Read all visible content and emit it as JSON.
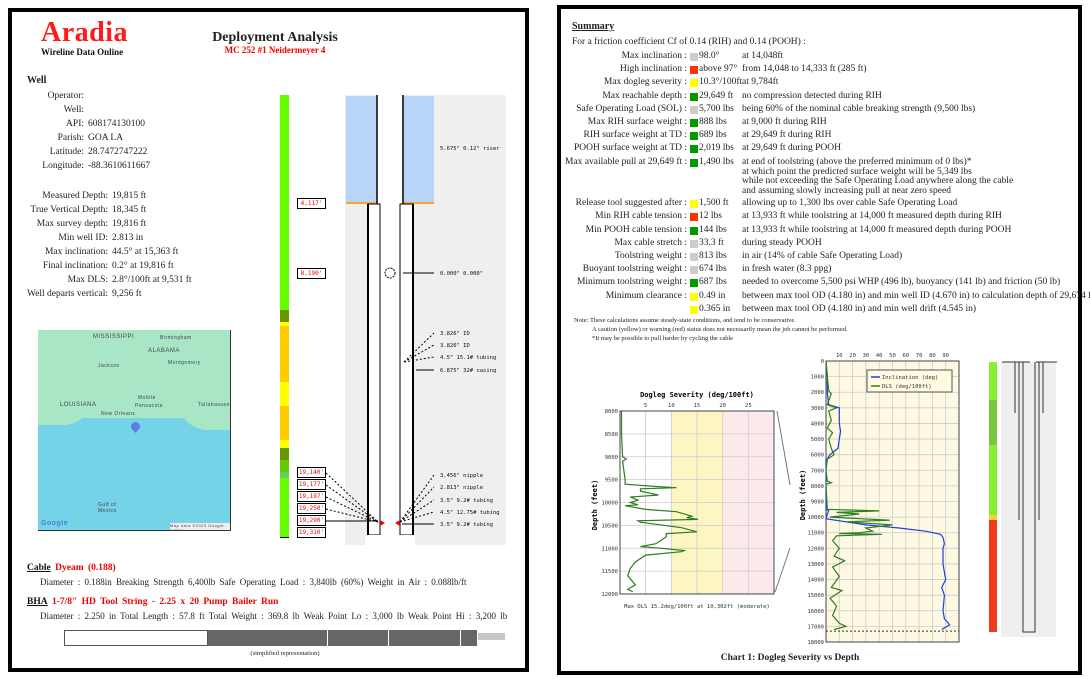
{
  "left": {
    "brand": "Aradia",
    "brand_sub": "Wireline Data Online",
    "title": "Deployment Analysis",
    "subtitle": "MC 252 #1 Neidermeyer 4",
    "well_heading": "Well",
    "well": [
      {
        "label": "Operator:",
        "value": ""
      },
      {
        "label": "Well:",
        "value": ""
      },
      {
        "label": "API:",
        "value": "608174130100"
      },
      {
        "label": "Parish:",
        "value": "GOA LA"
      },
      {
        "label": "Latitude:",
        "value": "28.7472747222"
      },
      {
        "label": "Longitude:",
        "value": "-88.3610611667"
      }
    ],
    "stats": [
      {
        "label": "Measured Depth:",
        "value": "19,815 ft"
      },
      {
        "label": "True Vertical Depth:",
        "value": "18,345 ft"
      },
      {
        "label": "Max survey depth:",
        "value": "19,816 ft"
      },
      {
        "label": "Min well ID:",
        "value": "2.813 in"
      },
      {
        "label": "Max inclination:",
        "value": "44.5° at 15,363 ft"
      },
      {
        "label": "Final inclination:",
        "value": "0.2° at 19,816 ft"
      },
      {
        "label": "Max DLS:",
        "value": "2.8°/100ft at 9,531 ft"
      },
      {
        "label": "Well departs vertical:",
        "value": "9,256 ft"
      }
    ],
    "map": {
      "labels": [
        "MISSISSIPPI",
        "ALABAMA",
        "LOUISIANA",
        "Montgomery",
        "Jackson",
        "Mobile",
        "Pensacola",
        "New Orleans",
        "Gulf of Mexico",
        "Tallahassee",
        "Birmingham"
      ],
      "logo": "Google",
      "attribution": "Map data ©2025 Google INEGI",
      "pin_color": "#5b7fe6"
    },
    "wellbore": {
      "left_depths": [
        "4,117'",
        "8,190'",
        "19,140'",
        "19,177'",
        "19,197'",
        "19,250'",
        "19,290'",
        "19,310'"
      ],
      "right_labels": [
        "5.675\" 0.12\" riser",
        "0.000\" 0.000\"",
        "3.826\" ID",
        "3.826\" ID",
        "4.5\" 15.1# tubing",
        "6.875\" 32# casing",
        "3.456\" nipple",
        "2.813\" nipple",
        "3.5\" 9.2# tubing",
        "4.5\" 12.75# tubing",
        "3.5\" 9.2# tubing"
      ],
      "riser_color": "#b8d4f8",
      "mudline_color": "#f5a623"
    },
    "cable": {
      "heading": "Cable",
      "name": "Dyeam (0.188)",
      "details": "Diameter : 0.188in    Breaking Strength 6,400lb    Safe Operating Load : 3,840lb (60%)    Weight in Air : 0.088lb/ft"
    },
    "bha": {
      "heading": "BHA",
      "name": "1-7/8\" HD Tool String - 2.25 x 20 Pump Bailer Run",
      "details": "Diameter : 2.250 in    Total Length : 57.8 ft    Total Weight : 369.8 lb    Weak Point Lo : 3,000 lb    Weak Point Hi : 3,200 lb"
    },
    "toolstring_note": "(simplified representation)"
  },
  "right": {
    "summary_title": "Summary",
    "friction_line": "For a friction coefficient Cf of 0.14 (RIH) and 0.14 (POOH) :",
    "rows": [
      {
        "label": "Max inclination :",
        "color": "#cccccc",
        "value": "98.0°",
        "desc": [
          "at 14,048ft"
        ]
      },
      {
        "label": "High inclination :",
        "color": "#ff3300",
        "value": "above 97°",
        "desc": [
          "from 14,048 to 14,333 ft (285 ft)"
        ]
      },
      {
        "label": "Max dogleg severity :",
        "color": "#ffff00",
        "value": "10.3°/100ft",
        "desc": [
          "at 9,784ft"
        ]
      },
      {
        "label": "Max reachable depth :",
        "color": "#009900",
        "value": "29,649 ft",
        "desc": [
          "no compression detected during RIH"
        ]
      },
      {
        "label": "Safe Operating Load (SOL) :",
        "color": "#cccccc",
        "value": "5,700 lbs",
        "desc": [
          "being 60% of the nominal cable breaking strength (9,500 lbs)"
        ]
      },
      {
        "label": "Max RIH surface weight :",
        "color": "#009900",
        "value": "888 lbs",
        "desc": [
          "at 9,000 ft during RIH"
        ]
      },
      {
        "label": "RIH surface weight at TD :",
        "color": "#009900",
        "value": "689 lbs",
        "desc": [
          "at 29,649 ft during RIH"
        ]
      },
      {
        "label": "POOH surface weight at TD :",
        "color": "#009900",
        "value": "2,019 lbs",
        "desc": [
          "at 29,649 ft during POOH"
        ]
      },
      {
        "label": "Max available pull at 29,649 ft :",
        "color": "#009900",
        "value": "1,490 lbs",
        "desc": [
          "at end of toolstring (above the preferred minimum of 0 lbs)*",
          "at which point the predicted surface weight will be 5,349 lbs",
          "while not exceeding the Safe Operating Load anywhere along the cable",
          "and assuming slowly increasing pull at near zero speed"
        ]
      },
      {
        "label": "Release tool suggested after :",
        "color": "#ffff00",
        "value": "1,500 ft",
        "desc": [
          "allowing up to 1,300 lbs over cable Safe Operating Load"
        ]
      },
      {
        "label": "Min RIH cable tension :",
        "color": "#ff3300",
        "value": "12 lbs",
        "desc": [
          "at 13,933 ft while toolstring at 14,000 ft measured depth during RIH"
        ]
      },
      {
        "label": "Min POOH cable tension :",
        "color": "#009900",
        "value": "144 lbs",
        "desc": [
          "at 13,933 ft while toolstring at 14,000 ft measured depth during POOH"
        ]
      },
      {
        "label": "Max cable stretch :",
        "color": "#cccccc",
        "value": "33.3 ft",
        "desc": [
          "during steady POOH"
        ]
      },
      {
        "label": "Toolstring weight :",
        "color": "#cccccc",
        "value": "813 lbs",
        "desc": [
          "in air   (14% of cable Safe Operating Load)"
        ]
      },
      {
        "label": "Buoyant toolstring weight :",
        "color": "#cccccc",
        "value": "674 lbs",
        "desc": [
          "in fresh water (8.3 ppg)"
        ]
      },
      {
        "label": "Minimum toolstring weight :",
        "color": "#009900",
        "value": "687 lbs",
        "desc": [
          "needed to overcome 5,500 psi WHP (496 lb), buoyancy (141 lb) and friction (50 lb)"
        ]
      },
      {
        "label": "Minimum clearance :",
        "color": "#ffff00",
        "value": "0.49 in",
        "desc": [
          "between max tool OD (4.180 in) and min well ID (4.670 in) to calculation depth of 29,674 ft"
        ]
      },
      {
        "label": "",
        "color": "#ffff00",
        "value": "0.365 in",
        "desc": [
          "between max tool OD (4.180 in) and min well drift (4.545 in)"
        ]
      }
    ],
    "notes": [
      "Note:   These calculations assume steady-state conditions, and tend to be conservative.",
      "A caution (yellow) or warning (red) status does not necessarily mean the job cannot be performed.",
      "*It may be possible to pull harder by cycling the cable"
    ],
    "caption": "Chart 1: Dogleg Severity vs Depth"
  },
  "chart_data": [
    {
      "type": "line",
      "title": "Dogleg Severity (deg/100ft)",
      "ylabel": "Depth (feet)",
      "xlim": [
        0,
        30
      ],
      "ylim": [
        8000,
        12000
      ],
      "y_inverted": true,
      "x_ticks": [
        "5",
        "10",
        "15",
        "20",
        "25"
      ],
      "y_ticks": [
        "8000",
        "8500",
        "9000",
        "9500",
        "10000",
        "10500",
        "11000",
        "11500",
        "12000"
      ],
      "grid": true,
      "bands": [
        {
          "from": 10,
          "to": 20,
          "color": "#fdf6c3"
        },
        {
          "from": 20,
          "to": 30,
          "color": "#fde8ea"
        }
      ],
      "footer": "Max DLS 15.2deg/100ft at 10,302ft (moderate)",
      "series": [
        {
          "color": "#2e7d1e",
          "points": [
            [
              8000,
              0.3
            ],
            [
              8500,
              0.3
            ],
            [
              9000,
              0.5
            ],
            [
              9050,
              1.2
            ],
            [
              9100,
              0.5
            ],
            [
              9500,
              1
            ],
            [
              9600,
              1
            ],
            [
              9650,
              7
            ],
            [
              9676,
              11
            ],
            [
              9700,
              4
            ],
            [
              9750,
              4
            ],
            [
              9800,
              6
            ],
            [
              9836,
              7.5
            ],
            [
              9880,
              2
            ],
            [
              9950,
              3.5
            ],
            [
              10000,
              2
            ],
            [
              10050,
              3.5
            ],
            [
              10070,
              1
            ],
            [
              10150,
              5
            ],
            [
              10200,
              11
            ],
            [
              10300,
              14
            ],
            [
              10330,
              13
            ],
            [
              10370,
              15.2
            ],
            [
              10400,
              3.5
            ],
            [
              10430,
              4
            ],
            [
              10550,
              12
            ],
            [
              10640,
              15
            ],
            [
              10680,
              9
            ],
            [
              10750,
              9
            ],
            [
              10900,
              7
            ],
            [
              10965,
              4
            ],
            [
              11000,
              8
            ],
            [
              11050,
              12.5
            ],
            [
              11075,
              12
            ],
            [
              11150,
              5
            ],
            [
              11300,
              3
            ],
            [
              11440,
              2
            ],
            [
              11600,
              1.5
            ],
            [
              11800,
              3
            ],
            [
              11900,
              1.5
            ],
            [
              11950,
              2.5
            ]
          ]
        }
      ]
    },
    {
      "type": "line",
      "ylabel": "Depth (feet)",
      "xlim": [
        0,
        100
      ],
      "ylim": [
        0,
        18000
      ],
      "y_inverted": true,
      "x_ticks": [
        "10",
        "20",
        "30",
        "40",
        "50",
        "60",
        "70",
        "80",
        "90"
      ],
      "y_ticks": [
        "0",
        "1000",
        "2000",
        "3000",
        "4000",
        "5000",
        "6000",
        "7000",
        "8000",
        "9000",
        "10000",
        "11000",
        "12000",
        "13000",
        "14000",
        "15000",
        "16000",
        "17000",
        "18000"
      ],
      "grid": true,
      "legend": "top-right",
      "series": [
        {
          "name": "Inclination (deg)",
          "color": "#1f3fe0",
          "points": [
            [
              0,
              0
            ],
            [
              1000,
              1
            ],
            [
              2000,
              1
            ],
            [
              2800,
              2
            ],
            [
              3000,
              10
            ],
            [
              4000,
              10
            ],
            [
              4500,
              11
            ],
            [
              5000,
              10
            ],
            [
              5600,
              9
            ],
            [
              6000,
              3
            ],
            [
              6400,
              0
            ],
            [
              9500,
              0
            ],
            [
              9600,
              2
            ],
            [
              9800,
              1
            ],
            [
              10100,
              0
            ],
            [
              10300,
              15
            ],
            [
              10500,
              30
            ],
            [
              10700,
              55
            ],
            [
              10900,
              75
            ],
            [
              11100,
              86
            ],
            [
              11300,
              88
            ],
            [
              11700,
              89
            ],
            [
              12000,
              88
            ],
            [
              13000,
              88
            ],
            [
              14000,
              90
            ],
            [
              14500,
              87
            ],
            [
              15000,
              89
            ],
            [
              16000,
              88
            ],
            [
              16500,
              89
            ],
            [
              16900,
              93
            ],
            [
              17200,
              87
            ]
          ]
        },
        {
          "name": "DLS (deg/100ft)",
          "color": "#2e7d1e",
          "points": [
            [
              0,
              0
            ],
            [
              1000,
              1
            ],
            [
              1900,
              2
            ],
            [
              2100,
              4
            ],
            [
              2800,
              1
            ],
            [
              3000,
              8
            ],
            [
              3200,
              2
            ],
            [
              3800,
              4
            ],
            [
              4300,
              1
            ],
            [
              4600,
              5
            ],
            [
              5000,
              2
            ],
            [
              5600,
              4
            ],
            [
              6000,
              6
            ],
            [
              6300,
              1
            ],
            [
              7000,
              0
            ],
            [
              7700,
              1
            ],
            [
              7800,
              4
            ],
            [
              7900,
              0
            ],
            [
              9500,
              1
            ],
            [
              9600,
              40
            ],
            [
              9700,
              8
            ],
            [
              9800,
              25
            ],
            [
              10000,
              3
            ],
            [
              10200,
              48
            ],
            [
              10300,
              15
            ],
            [
              10500,
              50
            ],
            [
              10700,
              30
            ],
            [
              10900,
              35
            ],
            [
              11000,
              25
            ],
            [
              11050,
              10
            ],
            [
              11100,
              42
            ],
            [
              11200,
              8
            ],
            [
              11500,
              5
            ],
            [
              12000,
              10
            ],
            [
              12500,
              6
            ],
            [
              12800,
              14
            ],
            [
              13200,
              5
            ],
            [
              13800,
              10
            ],
            [
              14500,
              4
            ],
            [
              14700,
              12
            ],
            [
              15200,
              3
            ],
            [
              15700,
              8
            ],
            [
              16300,
              5
            ],
            [
              16800,
              10
            ],
            [
              17000,
              15
            ],
            [
              17200,
              6
            ]
          ]
        }
      ]
    }
  ]
}
